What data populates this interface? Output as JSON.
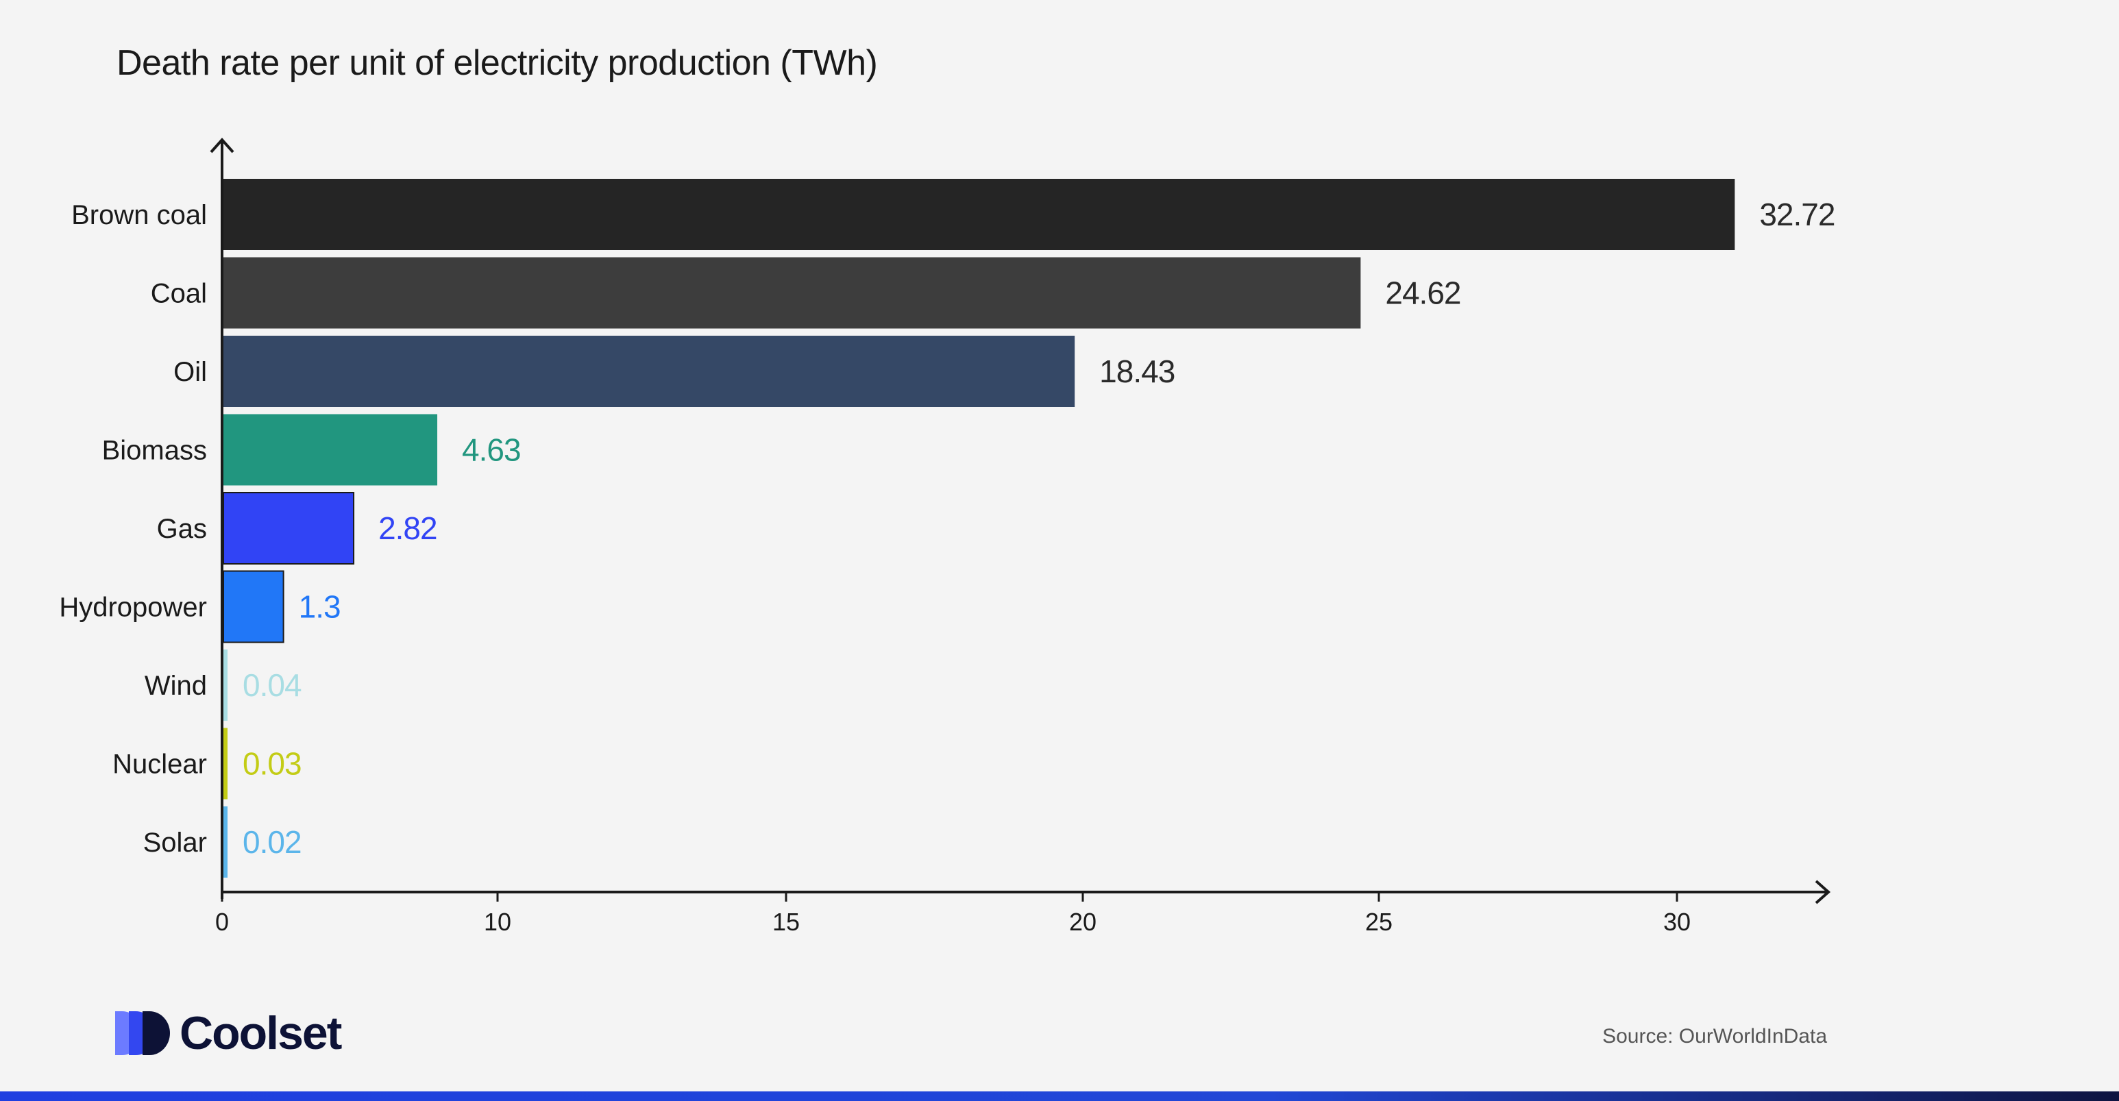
{
  "chart_data": {
    "type": "bar",
    "orientation": "horizontal",
    "title": "Death rate per unit of electricity production (TWh)",
    "categories": [
      "Brown coal",
      "Coal",
      "Oil",
      "Biomass",
      "Gas",
      "Hydropower",
      "Wind",
      "Nuclear",
      "Solar"
    ],
    "values": [
      32.72,
      24.62,
      18.43,
      4.63,
      2.82,
      1.3,
      0.04,
      0.03,
      0.02
    ],
    "bar_colors": [
      "#252525",
      "#3d3d3d",
      "#354866",
      "#21967f",
      "#3144f5",
      "#2177f7",
      "#a8dde3",
      "#c3cc15",
      "#5bb5ea"
    ],
    "label_colors": [
      "#2a2a2a",
      "#2a2a2a",
      "#2a2a2a",
      "#21967f",
      "#3144f5",
      "#2177f7",
      "#a8dde3",
      "#c3cc15",
      "#5bb5ea"
    ],
    "x_tick_labels": [
      "0",
      "10",
      "15",
      "20",
      "25",
      "30"
    ],
    "xlabel": "",
    "ylabel": "",
    "grid": false,
    "legend": "none"
  },
  "branding": {
    "logo_text": "Coolset",
    "logo_icon": "coolset-logo-icon",
    "source_text": "Source: OurWorldInData"
  }
}
